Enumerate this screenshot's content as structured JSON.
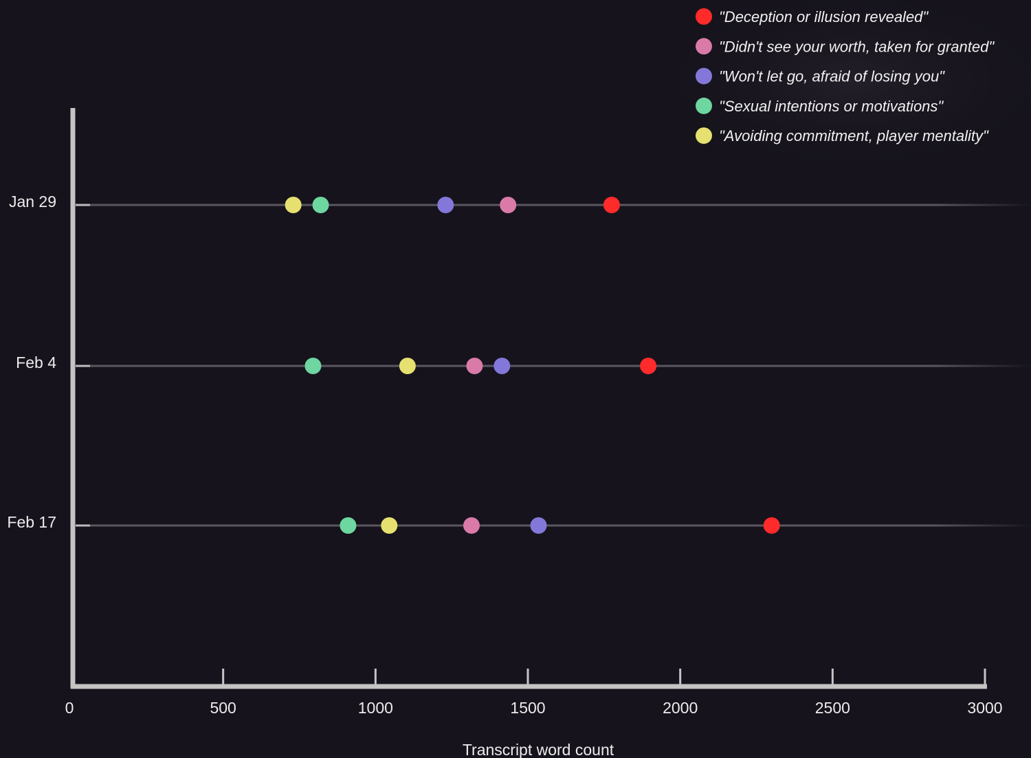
{
  "chart_data": {
    "type": "scatter",
    "title": "",
    "xlabel": "Transcript word count",
    "ylabel": "",
    "xlim": [
      0,
      3000
    ],
    "xticks": [
      0,
      500,
      1000,
      1500,
      2000,
      2500,
      3000
    ],
    "categories": [
      "Jan 29",
      "Feb 4",
      "Feb 17"
    ],
    "legend_position": "top-right",
    "series": [
      {
        "name": "\"Deception or illusion revealed\"",
        "color": "#ff2b2b",
        "values": [
          1775,
          1895,
          2300
        ]
      },
      {
        "name": "\"Didn't see your worth, taken for granted\"",
        "color": "#d97aa8",
        "values": [
          1435,
          1325,
          1315
        ]
      },
      {
        "name": "\"Won't let go, afraid of losing you\"",
        "color": "#8378d9",
        "values": [
          1230,
          1415,
          1535
        ]
      },
      {
        "name": "\"Sexual intentions or motivations\"",
        "color": "#6ed6a0",
        "values": [
          820,
          795,
          910
        ]
      },
      {
        "name": "\"Avoiding commitment, player mentality\"",
        "color": "#e6e070",
        "values": [
          730,
          1105,
          1045
        ]
      }
    ]
  }
}
